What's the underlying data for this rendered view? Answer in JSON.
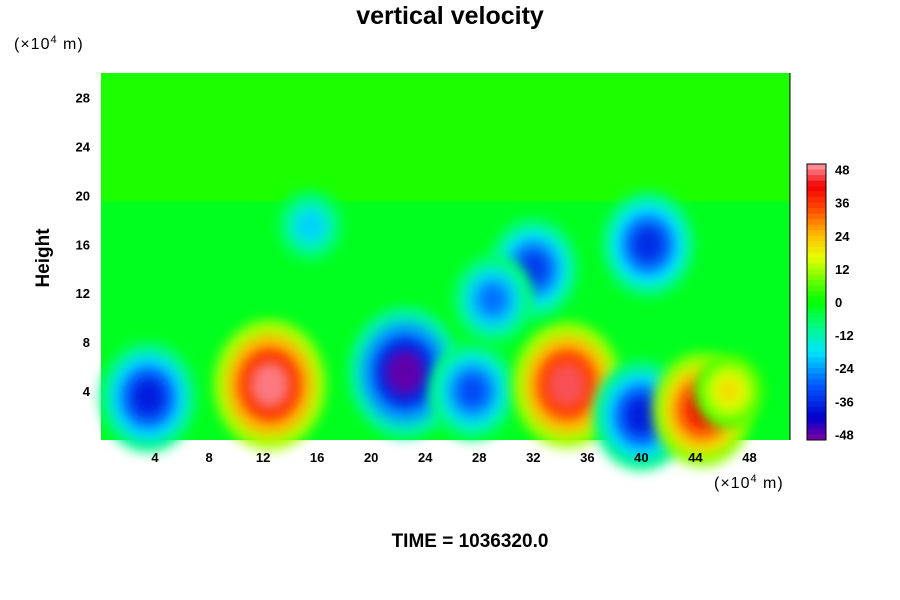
{
  "chart_data": {
    "type": "heatmap",
    "title": "vertical velocity",
    "xlabel": "",
    "ylabel": "Height",
    "x_unit_label": {
      "prefix": "(×10",
      "exp": "4",
      "suffix": " m)"
    },
    "y_unit_label": {
      "prefix": "(×10",
      "exp": "4",
      "suffix": " m)"
    },
    "xlim": [
      0,
      51
    ],
    "ylim": [
      0,
      30
    ],
    "x_ticks": [
      4,
      8,
      12,
      16,
      20,
      24,
      28,
      32,
      36,
      40,
      44,
      48
    ],
    "x_tick_labels": [
      "4",
      "8",
      "12",
      "16",
      "20",
      "24",
      "28",
      "32",
      "36",
      "40",
      "44",
      "48"
    ],
    "y_ticks": [
      4,
      8,
      12,
      16,
      20,
      24,
      28
    ],
    "y_tick_labels": [
      "4",
      "8",
      "12",
      "16",
      "20",
      "24",
      "28"
    ],
    "colorbar": {
      "min": -50,
      "max": 50,
      "tick_values": [
        48,
        36,
        24,
        12,
        0,
        -12,
        -24,
        -36,
        -48
      ],
      "tick_labels": [
        "48",
        "36",
        "24",
        "12",
        "0",
        "-12",
        "-24",
        "-36",
        "-48"
      ]
    },
    "features": [
      {
        "x": 3.5,
        "y": 3.5,
        "value": -38
      },
      {
        "x": 12.5,
        "y": 4.5,
        "value": 48
      },
      {
        "x": 22.5,
        "y": 5.5,
        "value": -48
      },
      {
        "x": 27.5,
        "y": 4.0,
        "value": -32
      },
      {
        "x": 34.5,
        "y": 4.5,
        "value": 46
      },
      {
        "x": 40.0,
        "y": 2.0,
        "value": -38
      },
      {
        "x": 44.5,
        "y": 2.5,
        "value": 40
      },
      {
        "x": 46.5,
        "y": 4.0,
        "value": 20
      },
      {
        "x": 40.5,
        "y": 16.0,
        "value": -36
      },
      {
        "x": 32.0,
        "y": 14.0,
        "value": -34
      },
      {
        "x": 29.0,
        "y": 11.5,
        "value": -28
      },
      {
        "x": 15.5,
        "y": 17.5,
        "value": -20
      }
    ]
  },
  "footer": {
    "time_label": "TIME = 1036320.0"
  }
}
